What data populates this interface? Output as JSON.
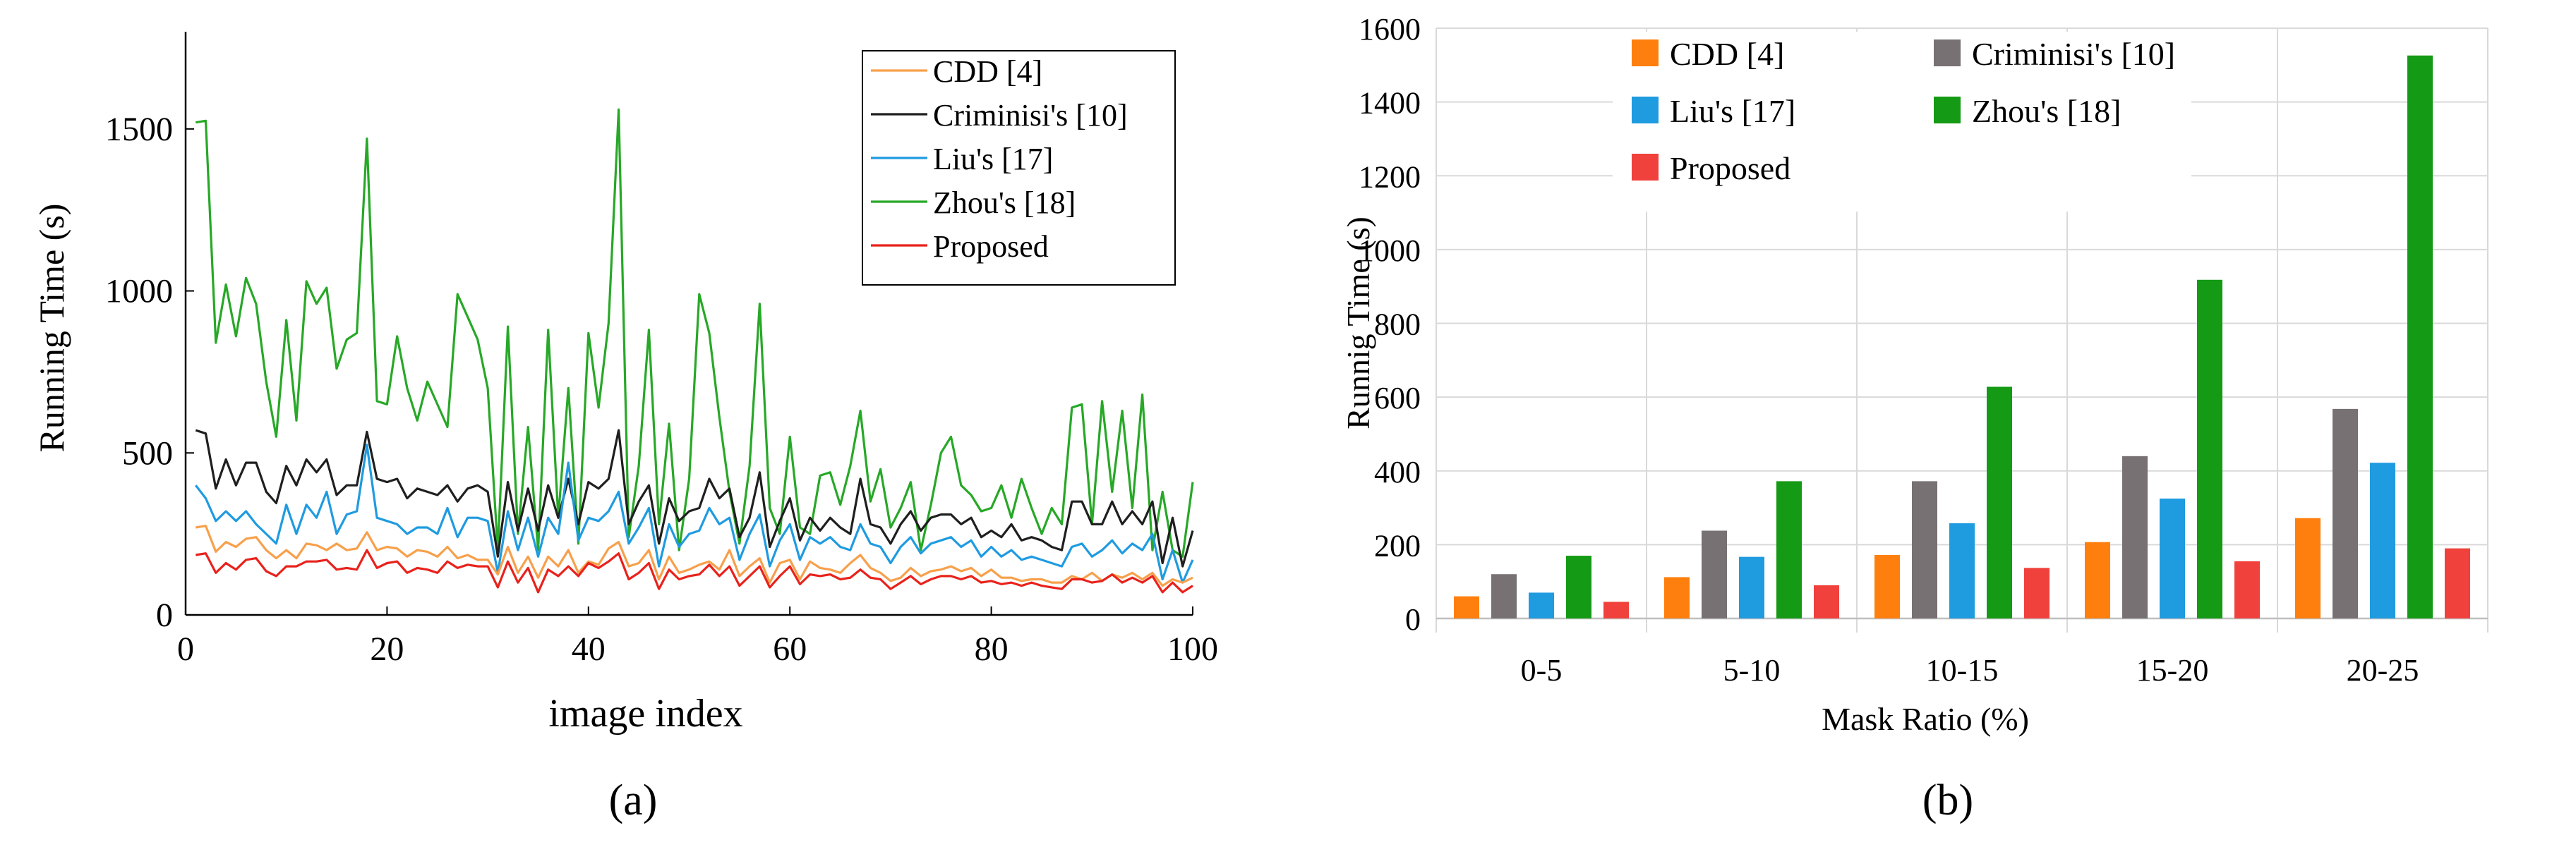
{
  "panel_a_label": "(a)",
  "panel_b_label": "(b)",
  "chart_data": [
    {
      "type": "line",
      "panel": "a",
      "title": "",
      "xlabel": "image index",
      "ylabel": "Running Time (s)",
      "xlim": [
        0,
        100
      ],
      "ylim": [
        0,
        1800
      ],
      "xticks": [
        0,
        20,
        40,
        60,
        80,
        100
      ],
      "yticks": [
        0,
        500,
        1000,
        1500
      ],
      "grid": false,
      "legend_position": "top-right",
      "x": [
        1,
        2,
        3,
        4,
        5,
        6,
        7,
        8,
        9,
        10,
        11,
        12,
        13,
        14,
        15,
        16,
        17,
        18,
        19,
        20,
        21,
        22,
        23,
        24,
        25,
        26,
        27,
        28,
        29,
        30,
        31,
        32,
        33,
        34,
        35,
        36,
        37,
        38,
        39,
        40,
        41,
        42,
        43,
        44,
        45,
        46,
        47,
        48,
        49,
        50,
        51,
        52,
        53,
        54,
        55,
        56,
        57,
        58,
        59,
        60,
        61,
        62,
        63,
        64,
        65,
        66,
        67,
        68,
        69,
        70,
        71,
        72,
        73,
        74,
        75,
        76,
        77,
        78,
        79,
        80,
        81,
        82,
        83,
        84,
        85,
        86,
        87,
        88,
        89,
        90,
        91,
        92,
        93,
        94,
        95,
        96,
        97,
        98,
        99,
        100
      ],
      "series": [
        {
          "name": "CDD [4]",
          "color": "#f7a04b",
          "values": [
            270,
            275,
            195,
            225,
            210,
            235,
            240,
            200,
            175,
            200,
            175,
            220,
            215,
            200,
            220,
            200,
            205,
            255,
            200,
            210,
            205,
            180,
            200,
            195,
            180,
            210,
            175,
            185,
            170,
            170,
            125,
            210,
            130,
            180,
            115,
            180,
            150,
            200,
            130,
            165,
            155,
            205,
            225,
            150,
            160,
            200,
            110,
            180,
            130,
            140,
            155,
            165,
            140,
            200,
            120,
            150,
            175,
            100,
            160,
            170,
            110,
            165,
            145,
            140,
            130,
            160,
            185,
            145,
            130,
            105,
            115,
            145,
            120,
            135,
            140,
            150,
            135,
            145,
            120,
            140,
            115,
            115,
            105,
            110,
            110,
            100,
            100,
            120,
            110,
            130,
            105,
            125,
            115,
            130,
            110,
            130,
            90,
            110,
            100,
            115
          ]
        },
        {
          "name": "Criminisi's [10]",
          "color": "#1f1f1f",
          "values": [
            570,
            560,
            390,
            480,
            400,
            470,
            470,
            380,
            345,
            460,
            400,
            480,
            440,
            480,
            370,
            400,
            400,
            565,
            420,
            410,
            420,
            360,
            390,
            380,
            370,
            400,
            350,
            390,
            400,
            380,
            180,
            410,
            260,
            390,
            260,
            400,
            300,
            420,
            280,
            410,
            390,
            420,
            570,
            280,
            350,
            400,
            220,
            360,
            290,
            320,
            330,
            420,
            360,
            390,
            240,
            300,
            440,
            210,
            290,
            360,
            230,
            300,
            260,
            300,
            270,
            250,
            420,
            280,
            270,
            220,
            280,
            320,
            260,
            300,
            310,
            310,
            280,
            300,
            240,
            260,
            240,
            280,
            230,
            240,
            230,
            210,
            200,
            350,
            350,
            280,
            280,
            350,
            280,
            320,
            280,
            350,
            160,
            300,
            150,
            260
          ]
        },
        {
          "name": "Liu's [17]",
          "color": "#1f9be0",
          "values": [
            400,
            360,
            290,
            320,
            290,
            320,
            280,
            250,
            220,
            340,
            250,
            340,
            300,
            380,
            250,
            310,
            320,
            525,
            300,
            290,
            280,
            250,
            270,
            270,
            250,
            330,
            240,
            300,
            300,
            290,
            130,
            320,
            200,
            300,
            180,
            300,
            250,
            470,
            230,
            300,
            290,
            320,
            380,
            220,
            270,
            330,
            150,
            280,
            210,
            250,
            260,
            330,
            280,
            300,
            170,
            250,
            310,
            150,
            230,
            280,
            170,
            240,
            220,
            240,
            210,
            200,
            280,
            220,
            210,
            160,
            210,
            240,
            190,
            220,
            230,
            240,
            210,
            230,
            180,
            210,
            180,
            200,
            170,
            180,
            170,
            160,
            150,
            210,
            220,
            180,
            200,
            230,
            190,
            220,
            200,
            250,
            110,
            200,
            100,
            170
          ]
        },
        {
          "name": "Zhou's [18]",
          "color": "#27a827",
          "values": [
            1520,
            1525,
            840,
            1020,
            860,
            1040,
            960,
            720,
            550,
            910,
            600,
            1030,
            960,
            1010,
            760,
            850,
            870,
            1470,
            660,
            650,
            860,
            700,
            600,
            720,
            650,
            580,
            990,
            920,
            850,
            700,
            200,
            890,
            250,
            580,
            200,
            880,
            300,
            700,
            220,
            870,
            640,
            900,
            1560,
            240,
            460,
            880,
            280,
            590,
            200,
            420,
            990,
            870,
            610,
            380,
            220,
            460,
            960,
            330,
            250,
            550,
            270,
            250,
            430,
            440,
            340,
            460,
            630,
            350,
            450,
            270,
            330,
            410,
            200,
            340,
            500,
            550,
            400,
            370,
            320,
            330,
            400,
            300,
            420,
            330,
            250,
            330,
            280,
            640,
            650,
            280,
            660,
            380,
            630,
            330,
            680,
            200,
            380,
            200,
            180,
            410
          ]
        },
        {
          "name": "Proposed",
          "color": "#e8221b",
          "values": [
            185,
            190,
            130,
            160,
            140,
            170,
            175,
            135,
            120,
            150,
            150,
            165,
            165,
            170,
            140,
            145,
            140,
            200,
            145,
            160,
            165,
            130,
            145,
            140,
            130,
            165,
            145,
            155,
            150,
            150,
            85,
            165,
            100,
            145,
            70,
            140,
            120,
            150,
            120,
            160,
            145,
            165,
            190,
            110,
            130,
            160,
            80,
            140,
            110,
            120,
            125,
            155,
            120,
            150,
            90,
            120,
            150,
            85,
            120,
            150,
            95,
            125,
            120,
            125,
            110,
            115,
            140,
            115,
            110,
            80,
            100,
            120,
            95,
            110,
            120,
            120,
            110,
            120,
            100,
            105,
            95,
            100,
            90,
            100,
            90,
            85,
            80,
            110,
            110,
            100,
            105,
            125,
            100,
            115,
            100,
            120,
            70,
            100,
            70,
            90
          ]
        }
      ]
    },
    {
      "type": "bar",
      "panel": "b",
      "title": "",
      "xlabel": "Mask Ratio (%)",
      "ylabel": "Runnig Time (s)",
      "ylim": [
        0,
        1600
      ],
      "yticks": [
        0,
        200,
        400,
        600,
        800,
        1000,
        1200,
        1400,
        1600
      ],
      "grid": true,
      "legend_position": "top-left",
      "categories": [
        "0-5",
        "5-10",
        "10-15",
        "15-20",
        "20-25"
      ],
      "series": [
        {
          "name": "CDD [4]",
          "color": "#ff7f0e",
          "values": [
            60,
            112,
            172,
            207,
            272
          ]
        },
        {
          "name": "Criminisi's [10]",
          "color": "#777173",
          "values": [
            120,
            238,
            372,
            440,
            568
          ]
        },
        {
          "name": "Liu's [17]",
          "color": "#1f9be0",
          "values": [
            70,
            167,
            258,
            325,
            422
          ]
        },
        {
          "name": "Zhou's [18]",
          "color": "#159a15",
          "values": [
            170,
            372,
            628,
            918,
            1526
          ]
        },
        {
          "name": "Proposed",
          "color": "#f0413c",
          "values": [
            45,
            90,
            137,
            155,
            190
          ]
        }
      ]
    }
  ]
}
